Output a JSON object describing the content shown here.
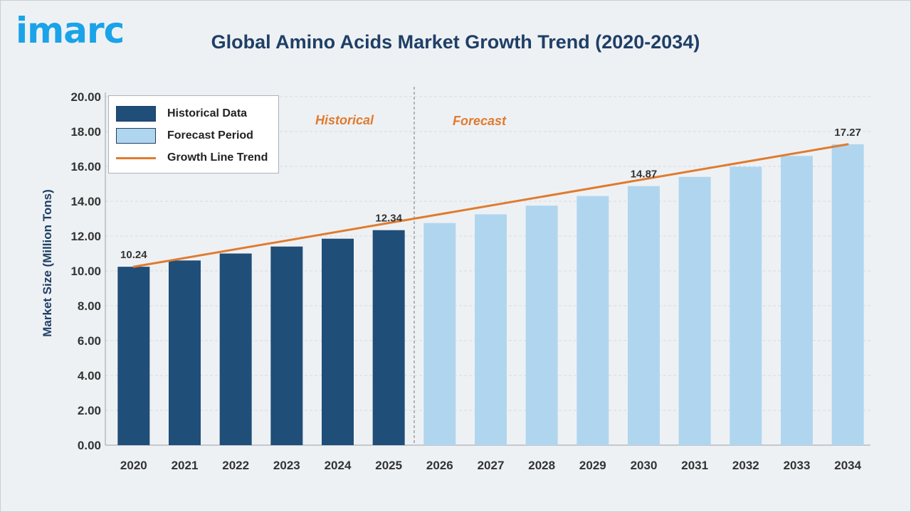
{
  "header": {
    "logo_text": "imarc",
    "title": "Global Amino Acids Market Growth Trend (2020-2034)"
  },
  "colors": {
    "historical": "#1f4e78",
    "forecast": "#b0d6ef",
    "trend": "#e07b2e",
    "logo": "#1aa3e8",
    "title": "#1f3f66"
  },
  "legend": {
    "historical_label": "Historical Data",
    "forecast_label": "Forecast Period",
    "trend_label": "Growth Line Trend"
  },
  "annotations": {
    "historical": "Historical",
    "forecast": "Forecast"
  },
  "chart_data": {
    "type": "bar",
    "title": "Global Amino Acids Market Growth Trend (2020-2034)",
    "xlabel": "",
    "ylabel": "Market Size (Million Tons)",
    "ylim": [
      0,
      20
    ],
    "ytick_step": 2,
    "ytick_labels": [
      "0.00",
      "2.00",
      "4.00",
      "6.00",
      "8.00",
      "10.00",
      "12.00",
      "14.00",
      "16.00",
      "18.00",
      "20.00"
    ],
    "grid": true,
    "legend_position": "top-left",
    "categories": [
      "2020",
      "2021",
      "2022",
      "2023",
      "2024",
      "2025",
      "2026",
      "2027",
      "2028",
      "2029",
      "2030",
      "2031",
      "2032",
      "2033",
      "2034"
    ],
    "series": [
      {
        "name": "Historical Data",
        "values": [
          10.24,
          10.6,
          11.0,
          11.4,
          11.85,
          12.34,
          null,
          null,
          null,
          null,
          null,
          null,
          null,
          null,
          null
        ]
      },
      {
        "name": "Forecast Period",
        "values": [
          null,
          null,
          null,
          null,
          null,
          null,
          12.75,
          13.25,
          13.75,
          14.3,
          14.87,
          15.4,
          15.98,
          16.6,
          17.27
        ]
      }
    ],
    "trend_line": {
      "name": "Growth Line Trend",
      "start": {
        "x": "2020",
        "y": 10.24
      },
      "end": {
        "x": "2034",
        "y": 17.27
      }
    },
    "data_labels": [
      {
        "x": "2020",
        "text": "10.24"
      },
      {
        "x": "2025",
        "text": "12.34"
      },
      {
        "x": "2030",
        "text": "14.87"
      },
      {
        "x": "2034",
        "text": "17.27"
      }
    ],
    "period_divider_after": "2025"
  }
}
